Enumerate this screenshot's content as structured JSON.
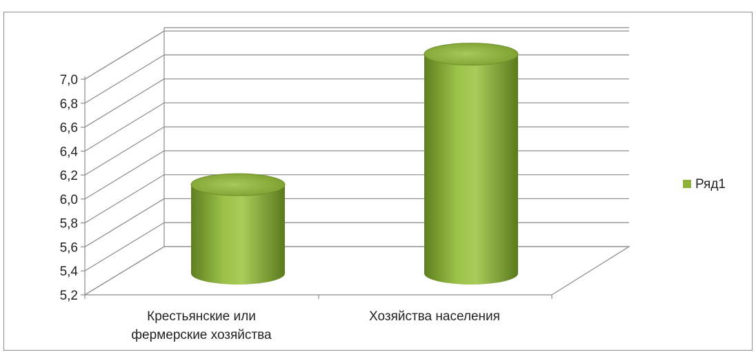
{
  "chart_data": {
    "type": "bar",
    "style": "3d-cylinder",
    "categories": [
      "Крестьянские или фермерские хозяйства",
      "Хозяйства населения"
    ],
    "category_lines": [
      [
        "Крестьянские или",
        "фермерские хозяйства"
      ],
      [
        "Хозяйства населения"
      ]
    ],
    "series": [
      {
        "name": "Ряд1",
        "values": [
          5.97,
          7.06
        ],
        "color": "#8db33a"
      }
    ],
    "ylim": [
      5.2,
      7.0
    ],
    "yticks": [
      "5,2",
      "5,4",
      "5,6",
      "5,8",
      "6,0",
      "6,2",
      "6,4",
      "6,6",
      "6,8",
      "7,0"
    ],
    "ytick_values": [
      5.2,
      5.4,
      5.6,
      5.8,
      6.0,
      6.2,
      6.4,
      6.6,
      6.8,
      7.0
    ],
    "grid": true,
    "legend": "right",
    "title": "",
    "xlabel": "",
    "ylabel": ""
  }
}
